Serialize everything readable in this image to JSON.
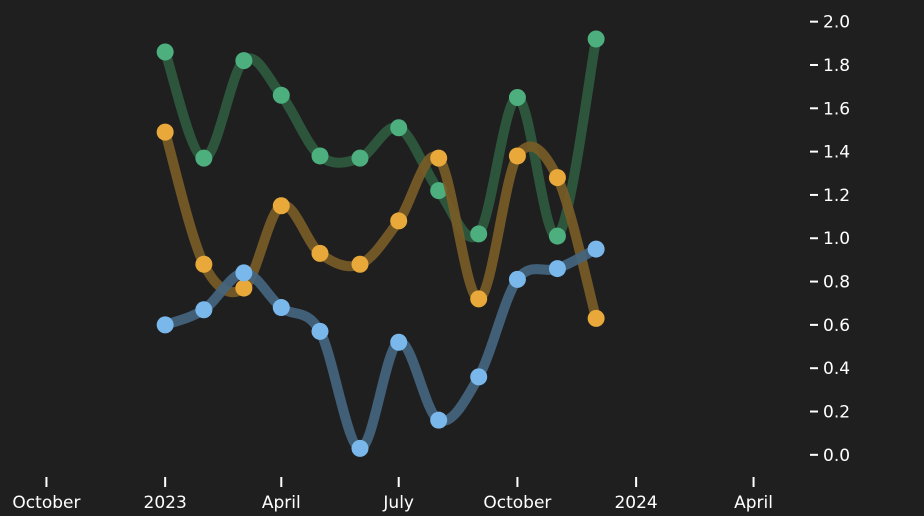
{
  "chart_data": {
    "type": "line",
    "title": "",
    "xlabel": "",
    "ylabel": "",
    "x_ticks": [
      {
        "date": "2022-10-01",
        "label": "October"
      },
      {
        "date": "2023-01-01",
        "label": "2023"
      },
      {
        "date": "2023-04-01",
        "label": "April"
      },
      {
        "date": "2023-07-01",
        "label": "July"
      },
      {
        "date": "2023-10-01",
        "label": "October"
      },
      {
        "date": "2024-01-01",
        "label": "2024"
      },
      {
        "date": "2024-04-01",
        "label": "April"
      }
    ],
    "y_ticks": [
      {
        "value": 0.0,
        "label": "0.0"
      },
      {
        "value": 0.2,
        "label": "0.2"
      },
      {
        "value": 0.4,
        "label": "0.4"
      },
      {
        "value": 0.6,
        "label": "0.6"
      },
      {
        "value": 0.8,
        "label": "0.8"
      },
      {
        "value": 1.0,
        "label": "1.0"
      },
      {
        "value": 1.2,
        "label": "1.2"
      },
      {
        "value": 1.4,
        "label": "1.4"
      },
      {
        "value": 1.6,
        "label": "1.6"
      },
      {
        "value": 1.8,
        "label": "1.8"
      },
      {
        "value": 2.0,
        "label": "2.0"
      }
    ],
    "xlim": [
      "2022-08-26",
      "2024-05-07"
    ],
    "ylim": [
      -0.07,
      2.1
    ],
    "y_axis_position": "right",
    "grid": false,
    "x": [
      "2023-01-01",
      "2023-01-31",
      "2023-03-03",
      "2023-04-01",
      "2023-05-01",
      "2023-06-01",
      "2023-07-01",
      "2023-08-01",
      "2023-09-01",
      "2023-10-01",
      "2023-11-01",
      "2023-12-01"
    ],
    "series": [
      {
        "color": "#4caf7d",
        "line_color": "#2e5a3f",
        "values": [
          1.86,
          1.37,
          1.82,
          1.66,
          1.38,
          1.37,
          1.51,
          1.22,
          1.02,
          1.65,
          1.01,
          1.92
        ]
      },
      {
        "color": "#e8a93a",
        "line_color": "#7a5c27",
        "values": [
          1.49,
          0.88,
          0.77,
          1.15,
          0.93,
          0.88,
          1.08,
          1.37,
          0.72,
          1.38,
          1.28,
          0.63
        ]
      },
      {
        "color": "#7ab8ec",
        "line_color": "#44657f",
        "values": [
          0.6,
          0.67,
          0.84,
          0.68,
          0.57,
          0.03,
          0.52,
          0.16,
          0.36,
          0.81,
          0.86,
          0.95
        ]
      }
    ]
  }
}
